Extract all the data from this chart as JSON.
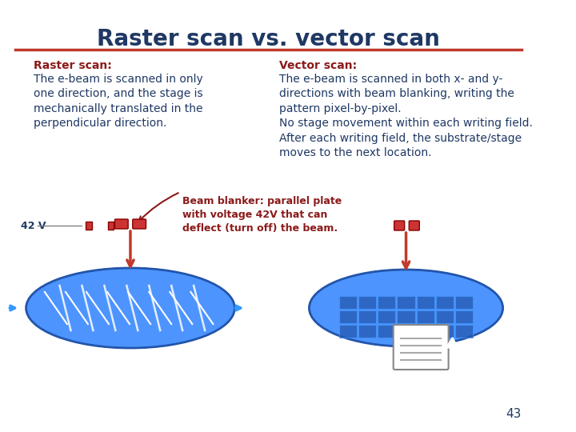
{
  "title": "Raster scan vs. vector scan",
  "title_color": "#1f3864",
  "title_fontsize": 20,
  "separator_color": "#c0392b",
  "bg_color": "#ffffff",
  "raster_heading": "Raster scan:",
  "raster_body": "The e-beam is scanned in only\none direction, and the stage is\nmechanically translated in the\nperpendicular direction.",
  "vector_heading": "Vector scan:",
  "vector_body": "The e-beam is scanned in both x- and y-\ndirections with beam blanking, writing the\npattern pixel-by-pixel.\nNo stage movement within each writing field.\nAfter each writing field, the substrate/stage\nmoves to the next location.",
  "beam_blanker_text": "Beam blanker: parallel plate\nwith voltage 42V that can\ndeflect (turn off) the beam.",
  "label_42v": "42 V",
  "page_number": "43",
  "heading_color": "#8b1a1a",
  "body_color": "#1f3864",
  "annotation_color": "#8b1a1a",
  "wafer_color": "#4d94ff",
  "wafer_edge_color": "#2255aa",
  "arrow_color": "#c0392b",
  "stage_arrow_color": "#3399ff"
}
